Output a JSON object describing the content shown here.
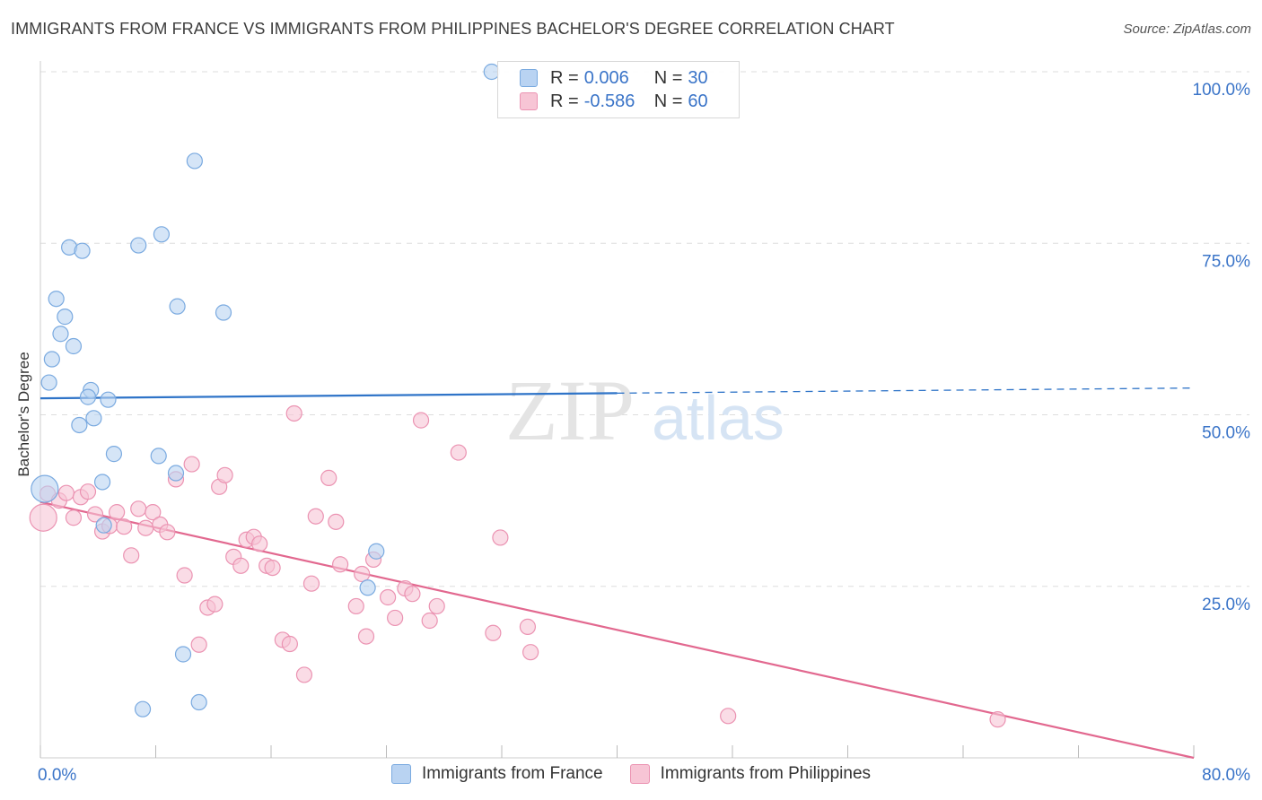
{
  "header": {
    "title": "IMMIGRANTS FROM FRANCE VS IMMIGRANTS FROM PHILIPPINES BACHELOR'S DEGREE CORRELATION CHART",
    "source": "Source: ZipAtlas.com"
  },
  "watermark": {
    "zip": "ZIP",
    "atlas": "atlas"
  },
  "legend": {
    "france": {
      "r_label": "R =",
      "r_value": "0.006",
      "n_label": "N =",
      "n_value": "30"
    },
    "philippines": {
      "r_label": "R =",
      "r_value": "-0.586",
      "n_label": "N =",
      "n_value": "60"
    }
  },
  "colors": {
    "france_fill": "#b9d3f2",
    "france_stroke": "#7aaae0",
    "france_line": "#2f74c8",
    "philippines_fill": "#f7c5d5",
    "philippines_stroke": "#eb93b2",
    "philippines_line": "#e2688f",
    "tick_text": "#3a74c8",
    "grid": "#dddddd"
  },
  "chart_data": {
    "type": "scatter",
    "title": "IMMIGRANTS FROM FRANCE VS IMMIGRANTS FROM PHILIPPINES BACHELOR'S DEGREE CORRELATION CHART",
    "xlabel": "",
    "ylabel": "Bachelor's Degree",
    "xlim": [
      0,
      80
    ],
    "ylim": [
      0,
      100
    ],
    "x_tick_labels": [
      {
        "value": 0,
        "label": "0.0%"
      },
      {
        "value": 80,
        "label": "80.0%"
      }
    ],
    "y_tick_labels": [
      {
        "value": 25,
        "label": "25.0%"
      },
      {
        "value": 50,
        "label": "50.0%"
      },
      {
        "value": 75,
        "label": "75.0%"
      },
      {
        "value": 100,
        "label": "100.0%"
      }
    ],
    "legend_position": "top-center",
    "series": [
      {
        "name": "Immigrants from France",
        "R": 0.006,
        "N": 30,
        "trend": {
          "x_start": 0,
          "y_start": 52.4,
          "x_end": 80,
          "y_end": 53.9,
          "solid_until_x": 40
        },
        "points": [
          {
            "x": 31.3,
            "y": 100.0
          },
          {
            "x": 10.7,
            "y": 87.0
          },
          {
            "x": 8.4,
            "y": 76.3
          },
          {
            "x": 2.0,
            "y": 74.4
          },
          {
            "x": 2.9,
            "y": 73.9
          },
          {
            "x": 6.8,
            "y": 74.7
          },
          {
            "x": 1.1,
            "y": 66.9
          },
          {
            "x": 9.5,
            "y": 65.8
          },
          {
            "x": 12.7,
            "y": 64.9
          },
          {
            "x": 1.7,
            "y": 64.3
          },
          {
            "x": 1.4,
            "y": 61.8
          },
          {
            "x": 2.3,
            "y": 60.0
          },
          {
            "x": 0.8,
            "y": 58.1
          },
          {
            "x": 0.6,
            "y": 54.7
          },
          {
            "x": 3.5,
            "y": 53.6
          },
          {
            "x": 3.3,
            "y": 52.6
          },
          {
            "x": 4.7,
            "y": 52.2
          },
          {
            "x": 3.7,
            "y": 49.5
          },
          {
            "x": 2.7,
            "y": 48.5
          },
          {
            "x": 5.1,
            "y": 44.3
          },
          {
            "x": 8.2,
            "y": 44.0
          },
          {
            "x": 9.4,
            "y": 41.5
          },
          {
            "x": 4.3,
            "y": 40.2
          },
          {
            "x": 0.3,
            "y": 39.2
          },
          {
            "x": 4.4,
            "y": 33.9
          },
          {
            "x": 23.3,
            "y": 30.1
          },
          {
            "x": 22.7,
            "y": 24.8
          },
          {
            "x": 9.9,
            "y": 15.1
          },
          {
            "x": 11.0,
            "y": 8.1
          },
          {
            "x": 7.1,
            "y": 7.1
          }
        ]
      },
      {
        "name": "Immigrants from Philippines",
        "R": -0.586,
        "N": 60,
        "trend": {
          "x_start": 0,
          "y_start": 37.3,
          "x_end": 80,
          "y_end": 0.0
        },
        "points": [
          {
            "x": 0.2,
            "y": 35.0
          },
          {
            "x": 0.5,
            "y": 38.5
          },
          {
            "x": 1.3,
            "y": 37.5
          },
          {
            "x": 1.8,
            "y": 38.6
          },
          {
            "x": 2.3,
            "y": 35.0
          },
          {
            "x": 2.8,
            "y": 38.0
          },
          {
            "x": 3.3,
            "y": 38.8
          },
          {
            "x": 3.8,
            "y": 35.5
          },
          {
            "x": 4.3,
            "y": 33.0
          },
          {
            "x": 4.8,
            "y": 33.8
          },
          {
            "x": 5.3,
            "y": 35.8
          },
          {
            "x": 5.8,
            "y": 33.7
          },
          {
            "x": 6.3,
            "y": 29.5
          },
          {
            "x": 6.8,
            "y": 36.3
          },
          {
            "x": 7.3,
            "y": 33.5
          },
          {
            "x": 7.8,
            "y": 35.8
          },
          {
            "x": 8.3,
            "y": 34.0
          },
          {
            "x": 8.8,
            "y": 32.9
          },
          {
            "x": 9.4,
            "y": 40.6
          },
          {
            "x": 10.0,
            "y": 26.6
          },
          {
            "x": 10.5,
            "y": 42.8
          },
          {
            "x": 11.0,
            "y": 16.5
          },
          {
            "x": 11.6,
            "y": 21.9
          },
          {
            "x": 12.1,
            "y": 22.4
          },
          {
            "x": 12.4,
            "y": 39.5
          },
          {
            "x": 12.8,
            "y": 41.2
          },
          {
            "x": 13.4,
            "y": 29.3
          },
          {
            "x": 13.9,
            "y": 28.0
          },
          {
            "x": 14.3,
            "y": 31.8
          },
          {
            "x": 14.8,
            "y": 32.2
          },
          {
            "x": 15.2,
            "y": 31.2
          },
          {
            "x": 15.7,
            "y": 28.0
          },
          {
            "x": 16.1,
            "y": 27.7
          },
          {
            "x": 16.8,
            "y": 17.2
          },
          {
            "x": 17.3,
            "y": 16.6
          },
          {
            "x": 17.6,
            "y": 50.2
          },
          {
            "x": 18.3,
            "y": 12.1
          },
          {
            "x": 18.8,
            "y": 25.4
          },
          {
            "x": 19.1,
            "y": 35.2
          },
          {
            "x": 20.0,
            "y": 40.8
          },
          {
            "x": 20.5,
            "y": 34.4
          },
          {
            "x": 20.8,
            "y": 28.2
          },
          {
            "x": 21.9,
            "y": 22.1
          },
          {
            "x": 22.3,
            "y": 26.8
          },
          {
            "x": 22.6,
            "y": 17.7
          },
          {
            "x": 23.1,
            "y": 28.9
          },
          {
            "x": 24.1,
            "y": 23.4
          },
          {
            "x": 24.6,
            "y": 20.4
          },
          {
            "x": 25.3,
            "y": 24.7
          },
          {
            "x": 25.8,
            "y": 23.9
          },
          {
            "x": 26.4,
            "y": 49.2
          },
          {
            "x": 27.0,
            "y": 20.0
          },
          {
            "x": 27.5,
            "y": 22.1
          },
          {
            "x": 29.0,
            "y": 44.5
          },
          {
            "x": 31.4,
            "y": 18.2
          },
          {
            "x": 31.9,
            "y": 32.1
          },
          {
            "x": 33.8,
            "y": 19.1
          },
          {
            "x": 34.0,
            "y": 15.4
          },
          {
            "x": 47.7,
            "y": 6.1
          },
          {
            "x": 66.4,
            "y": 5.6
          }
        ]
      }
    ]
  },
  "bottom_legend": {
    "france": "Immigrants from France",
    "philippines": "Immigrants from Philippines"
  }
}
